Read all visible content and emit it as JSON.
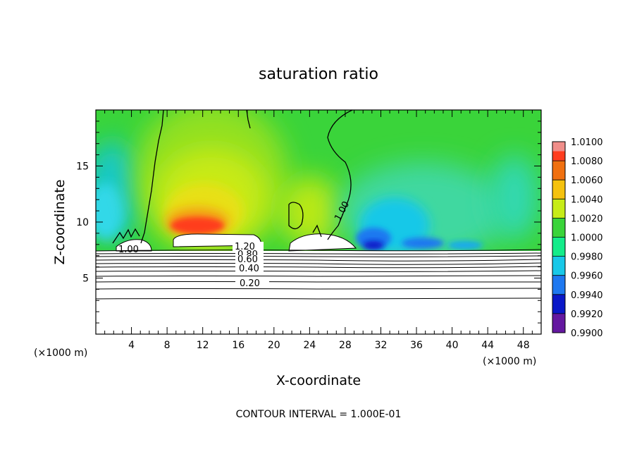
{
  "chart_data": {
    "type": "heatmap",
    "title": "saturation ratio",
    "xlabel": "X-coordinate",
    "ylabel": "Z-coordinate",
    "x_units_label": "(×1000 m)",
    "z_units_label": "(×1000 m)",
    "xlim": [
      0,
      50
    ],
    "ylim": [
      0,
      20
    ],
    "x_ticks": [
      "4",
      "8",
      "12",
      "16",
      "20",
      "24",
      "28",
      "32",
      "36",
      "40",
      "44",
      "48"
    ],
    "x_tick_values": [
      4,
      8,
      12,
      16,
      20,
      24,
      28,
      32,
      36,
      40,
      44,
      48
    ],
    "y_ticks": [
      "5",
      "10",
      "15"
    ],
    "y_tick_values": [
      5,
      10,
      15
    ],
    "colorbar": {
      "labels": [
        "1.0100",
        "1.0080",
        "1.0060",
        "1.0040",
        "1.0020",
        "1.0000",
        "0.9980",
        "0.9960",
        "0.9940",
        "0.9920",
        "0.9900"
      ],
      "values": [
        1.01,
        1.008,
        1.006,
        1.004,
        1.002,
        1.0,
        0.998,
        0.996,
        0.994,
        0.992,
        0.99
      ],
      "colors": [
        "#f08e8a",
        "#ff3c1e",
        "#f07010",
        "#f5c20e",
        "#c7ec18",
        "#3ad43a",
        "#14ec8a",
        "#18c8e8",
        "#1e78f0",
        "#0a18c8",
        "#6418a0"
      ]
    },
    "contour_labels": [
      "1.20",
      "0.80",
      "0.60",
      "0.40",
      "0.20",
      "1.00",
      "1.00"
    ],
    "contour_levels": [
      0.2,
      0.3,
      0.4,
      0.5,
      0.6,
      0.7,
      0.8,
      0.9,
      1.0,
      1.1,
      1.2
    ],
    "footer": "CONTOUR INTERVAL = 1.000E-01"
  },
  "colors": {
    "background_field": "#3ad43a",
    "lower_region": "#ffffff",
    "contour_line": "#000000"
  }
}
